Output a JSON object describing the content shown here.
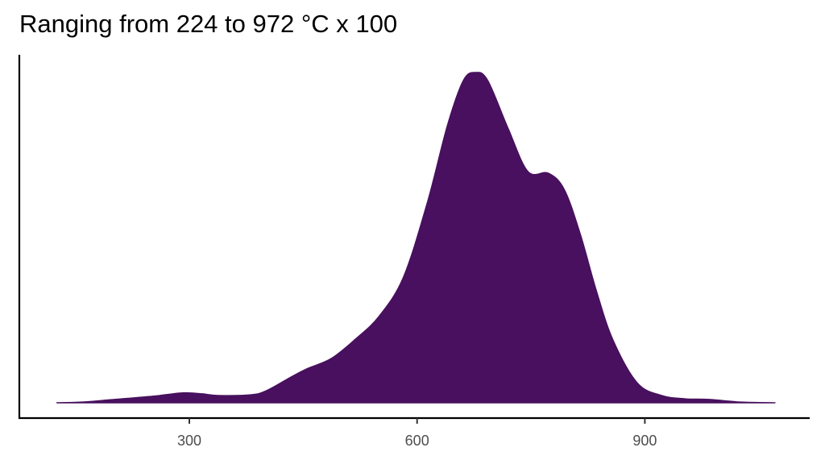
{
  "chart_data": {
    "type": "area",
    "title": "Ranging from 224 to 972 °C x 100",
    "xlabel": "",
    "ylabel": "",
    "xlim": [
      80,
      1110
    ],
    "ylim": [
      0,
      1.06
    ],
    "x_ticks": [
      300,
      600,
      900
    ],
    "y_ticks": [],
    "grid": false,
    "legend": "none",
    "fill_color": "#48105e",
    "series": [
      {
        "x": [
          125,
          158,
          211,
          253,
          291,
          317,
          338,
          381,
          402,
          434,
          455,
          487,
          519,
          550,
          582,
          614,
          640,
          661,
          677,
          693,
          720,
          746,
          773,
          794,
          815,
          836,
          858,
          890,
          922,
          953,
          985,
          1027,
          1072
        ],
        "y": [
          0,
          0.002,
          0.012,
          0.02,
          0.03,
          0.027,
          0.022,
          0.024,
          0.037,
          0.078,
          0.103,
          0.134,
          0.193,
          0.262,
          0.38,
          0.61,
          0.84,
          0.976,
          1.0,
          0.976,
          0.83,
          0.7,
          0.695,
          0.645,
          0.51,
          0.34,
          0.19,
          0.06,
          0.022,
          0.012,
          0.01,
          0.002,
          0
        ]
      }
    ]
  }
}
